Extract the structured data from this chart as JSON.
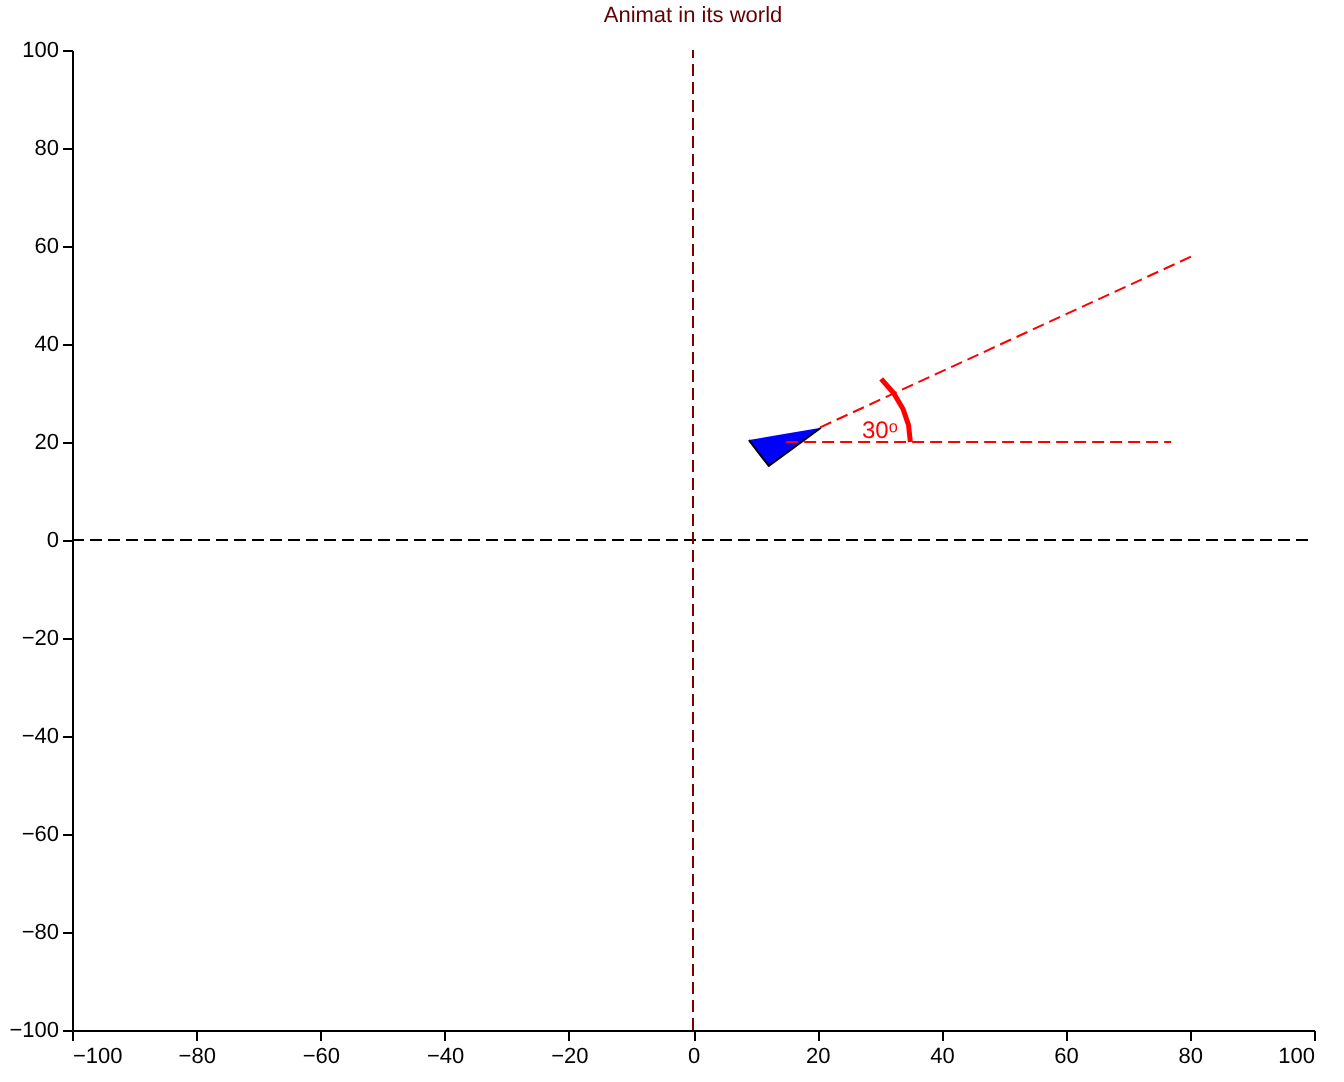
{
  "chart_data": {
    "type": "line",
    "title": "Animat in its world",
    "xlim": [
      -100,
      100
    ],
    "xticks": [
      -100,
      -80,
      -60,
      -40,
      -20,
      0,
      20,
      40,
      60,
      80,
      100
    ],
    "ylim": [
      -100,
      100
    ],
    "yticks": [
      -100,
      -80,
      -60,
      -40,
      -20,
      0,
      20,
      40,
      60,
      80,
      100
    ],
    "grid": false,
    "series": [
      {
        "color": "#000000",
        "line_style": "dashed",
        "x": [
          -100,
          100
        ],
        "values": [
          0,
          0
        ]
      },
      {
        "color": "#800000",
        "line_style": "dashed",
        "x": [
          0,
          0
        ],
        "values": [
          -100,
          100
        ]
      },
      {
        "type": "area",
        "color": "#0000ff",
        "x": [
          9,
          12.2,
          20.6
        ],
        "values": [
          20.4,
          15.1,
          22.9
        ]
      },
      {
        "color": "#ff0000",
        "line_style": "dashed",
        "x": [
          15,
          77
        ],
        "values": [
          20,
          20
        ]
      },
      {
        "color": "#ff0000",
        "line_style": "dashed",
        "x": [
          20.5,
          80.5
        ],
        "values": [
          23,
          58
        ]
      },
      {
        "color": "#ff0000",
        "line_style": "solid",
        "x": [
          35,
          34.7,
          33.8,
          32.3,
          30.3
        ],
        "values": [
          20,
          23.5,
          26.8,
          30,
          32.9
        ]
      }
    ],
    "annotations": [
      "30ᵒ"
    ]
  }
}
